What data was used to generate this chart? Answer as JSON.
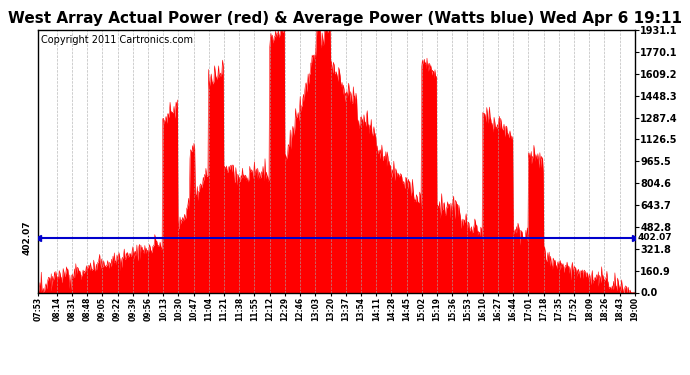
{
  "title": "West Array Actual Power (red) & Average Power (Watts blue) Wed Apr 6 19:11",
  "copyright": "Copyright 2011 Cartronics.com",
  "avg_power": 402.07,
  "y_max": 1931.1,
  "y_min": 0.0,
  "y_ticks": [
    0.0,
    160.9,
    321.8,
    482.8,
    643.7,
    804.6,
    965.5,
    1126.5,
    1287.4,
    1448.3,
    1609.2,
    1770.1,
    1931.1
  ],
  "y_tick_labels": [
    "0.0",
    "160.9",
    "321.8",
    "482.8",
    "643.7",
    "804.6",
    "965.5",
    "1126.5",
    "1287.4",
    "1448.3",
    "1609.2",
    "1770.1",
    "1931.1"
  ],
  "x_tick_labels": [
    "07:53",
    "08:14",
    "08:31",
    "08:48",
    "09:05",
    "09:22",
    "09:39",
    "09:56",
    "10:13",
    "10:30",
    "10:47",
    "11:04",
    "11:21",
    "11:38",
    "11:55",
    "12:12",
    "12:29",
    "12:46",
    "13:03",
    "13:20",
    "13:37",
    "13:54",
    "14:11",
    "14:28",
    "14:45",
    "15:02",
    "15:19",
    "15:36",
    "15:53",
    "16:10",
    "16:27",
    "16:44",
    "17:01",
    "17:18",
    "17:35",
    "17:52",
    "18:09",
    "18:26",
    "18:43",
    "19:00"
  ],
  "background_color": "#ffffff",
  "plot_bg_color": "#ffffff",
  "grid_color": "#aaaaaa",
  "line_color_avg": "#0000cc",
  "fill_color": "#ff0000",
  "title_fontsize": 11,
  "copyright_fontsize": 7,
  "border_color": "#000000"
}
